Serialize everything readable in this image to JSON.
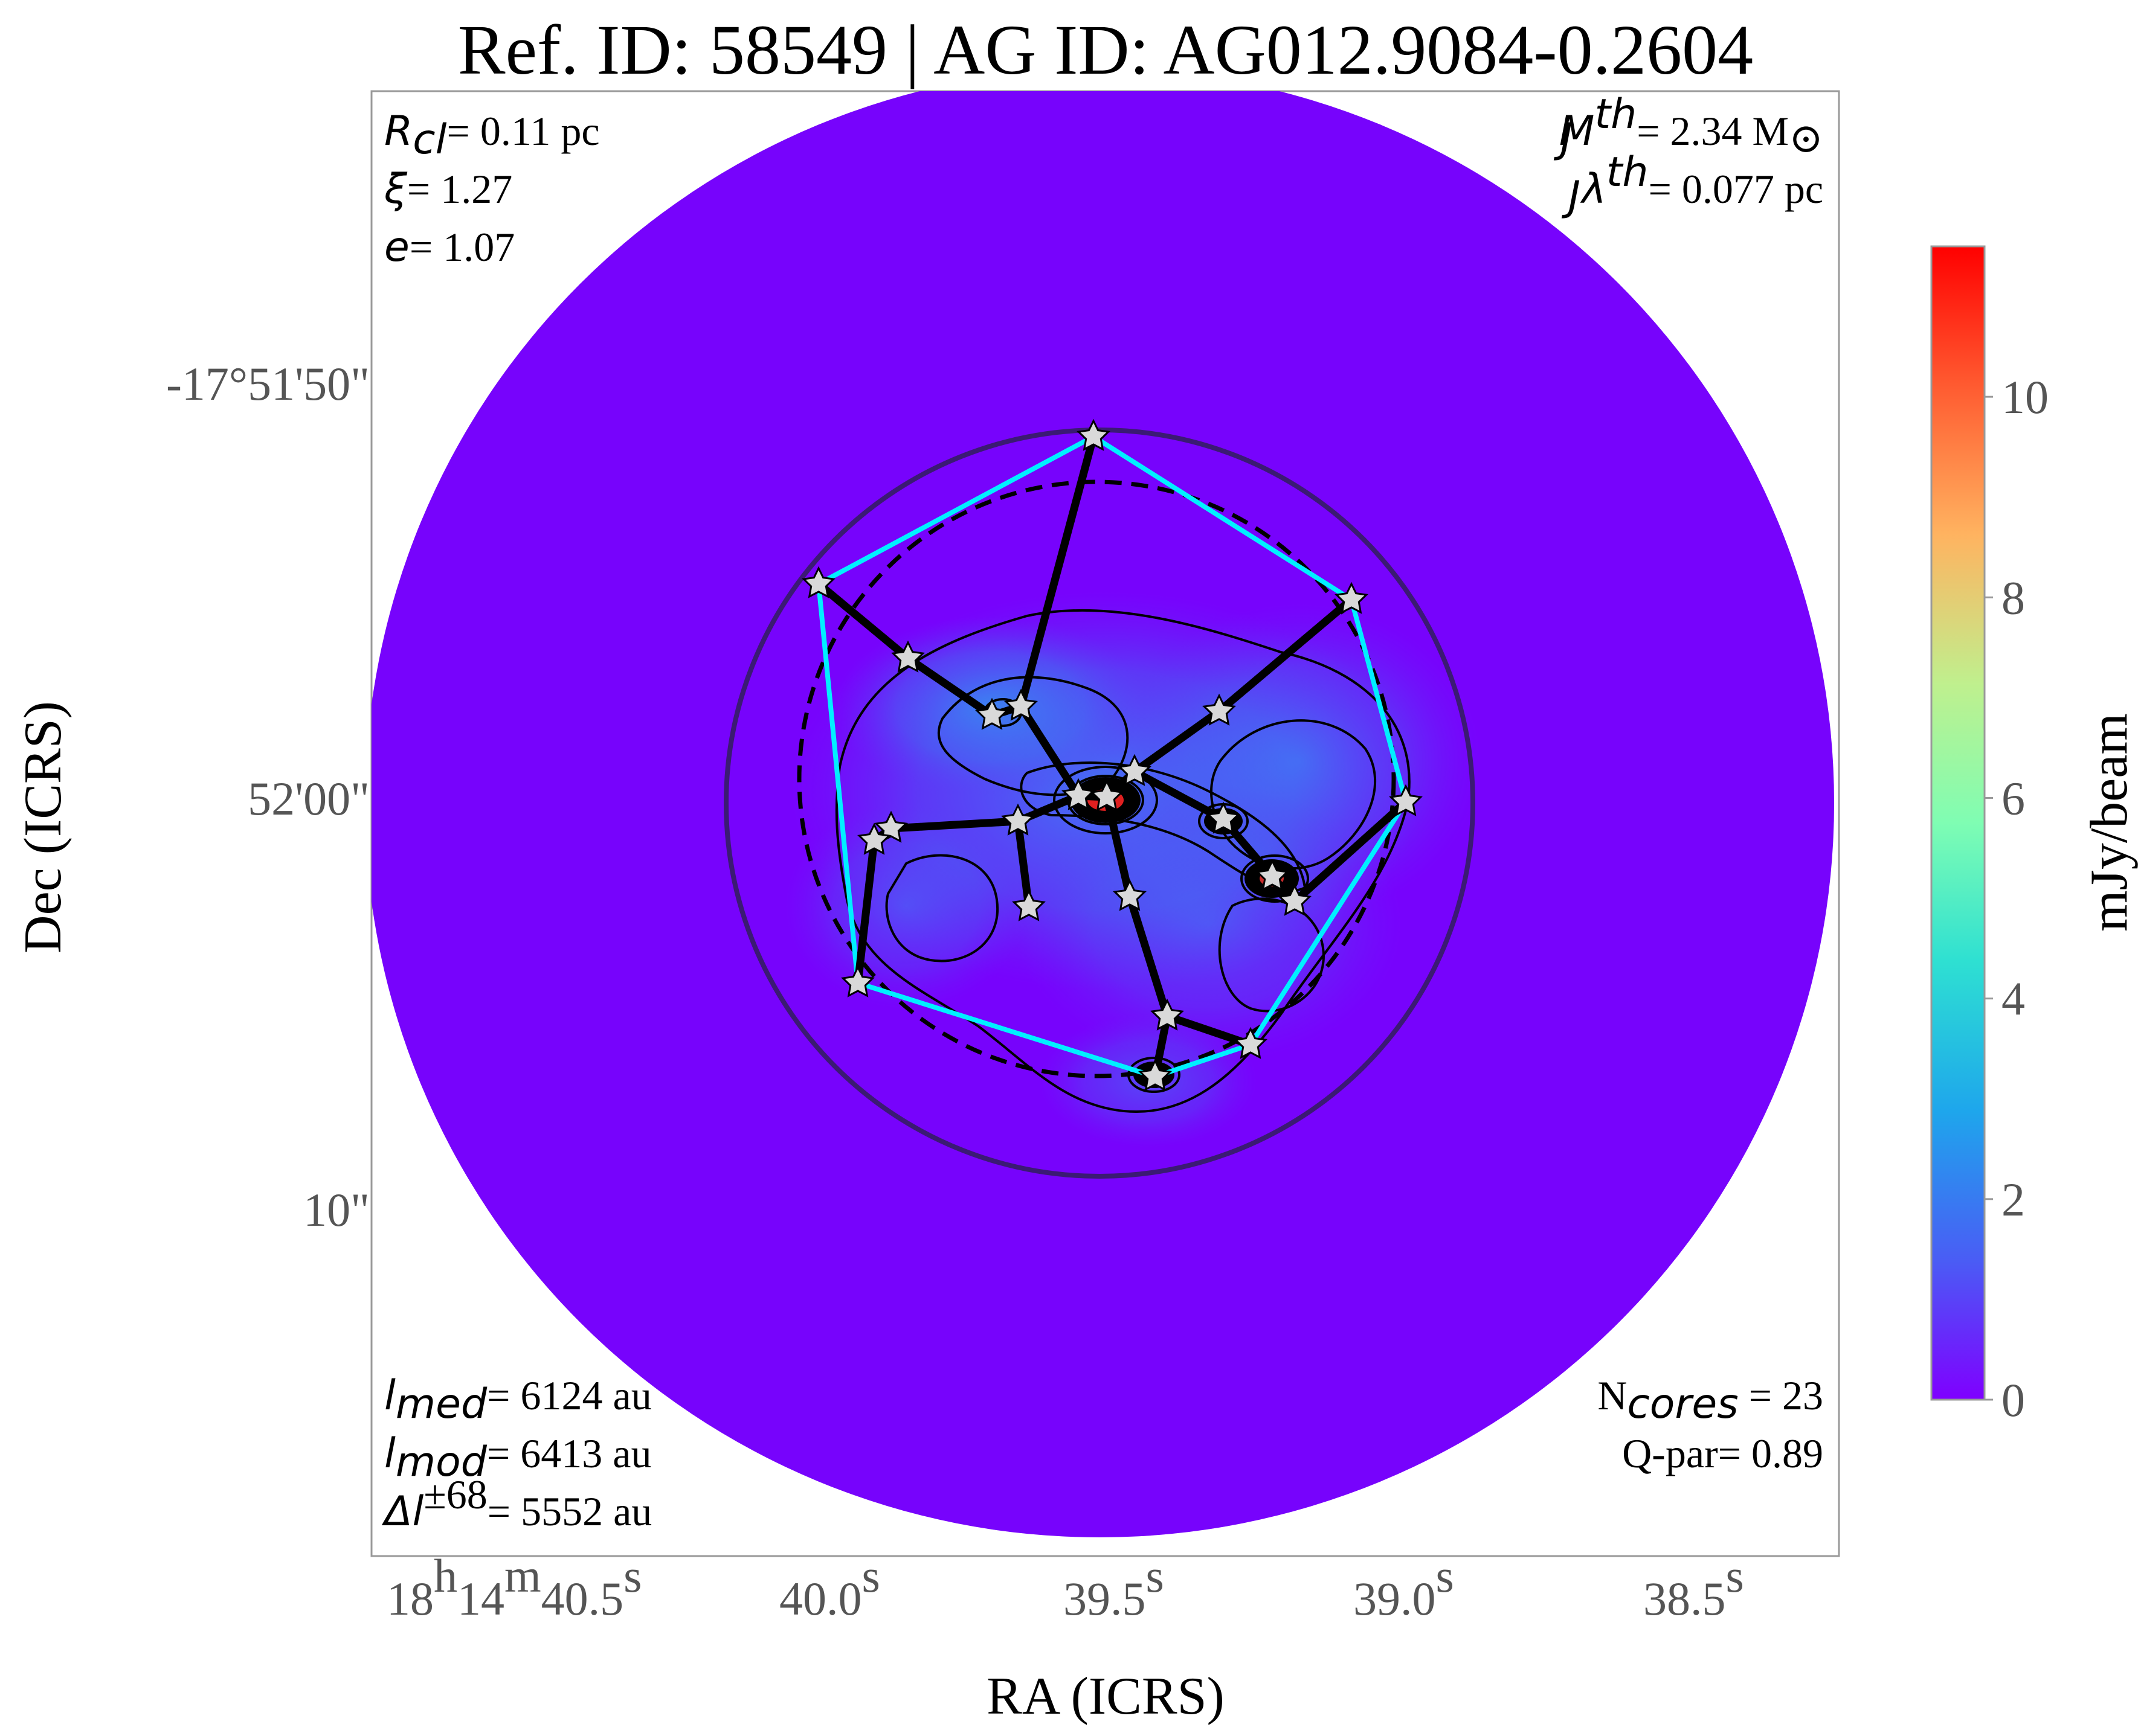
{
  "figure": {
    "title": "Ref. ID: 58549 | AG ID: AG012.9084-0.2604",
    "xlabel": "RA (ICRS)",
    "ylabel": "Dec (ICRS)",
    "colorbar_label": "mJy/beam",
    "colormap": "rainbow",
    "colorbar_ticks": [
      "0",
      "2",
      "4",
      "6",
      "8",
      "10"
    ],
    "colorbar_range": [
      0,
      11.5
    ],
    "x_ticks": [
      {
        "main": "18",
        "sup1": "h",
        "mid": "14",
        "sup2": "m",
        "tail": "40.5",
        "sup3": "s"
      },
      {
        "main": "40.0",
        "sup": "s"
      },
      {
        "main": "39.5",
        "sup": "s"
      },
      {
        "main": "39.0",
        "sup": "s"
      },
      {
        "main": "38.5",
        "sup": "s"
      }
    ],
    "y_ticks": [
      "-17°51'50\"",
      "52'00\"",
      "10\""
    ],
    "annotations": {
      "top_left": [
        {
          "sym": "R",
          "sub": "cl",
          "val": "= 0.11 pc"
        },
        {
          "sym": "ξ",
          "val": "= 1.27"
        },
        {
          "sym": "e",
          "val": "= 1.07"
        }
      ],
      "top_right": [
        {
          "sym": "M",
          "sub": "J",
          "sup": "th",
          "val": "= 2.34 M",
          "tail": "⊙"
        },
        {
          "sym": "λ",
          "sub": "J",
          "sup": "th",
          "val": "= 0.077 pc"
        }
      ],
      "bottom_left": [
        {
          "sym": "l",
          "sub": "med",
          "val": "= 6124 au"
        },
        {
          "sym": "l",
          "sub": "mod",
          "val": "= 6413 au"
        },
        {
          "sym": "Δl",
          "sup": "±68",
          "val": "= 5552 au"
        }
      ],
      "bottom_right": [
        {
          "sym": "N",
          "sub": "cores",
          "val": " = 23"
        },
        {
          "sym": "Q-par",
          "val": "= 0.89"
        }
      ]
    },
    "colors": {
      "background_map": "#7a00ff",
      "hull": "#00f0ff",
      "mst_edges": "#000000",
      "outer_circle": "#3b1a73",
      "star_fill": "#d9d9d9"
    }
  }
}
